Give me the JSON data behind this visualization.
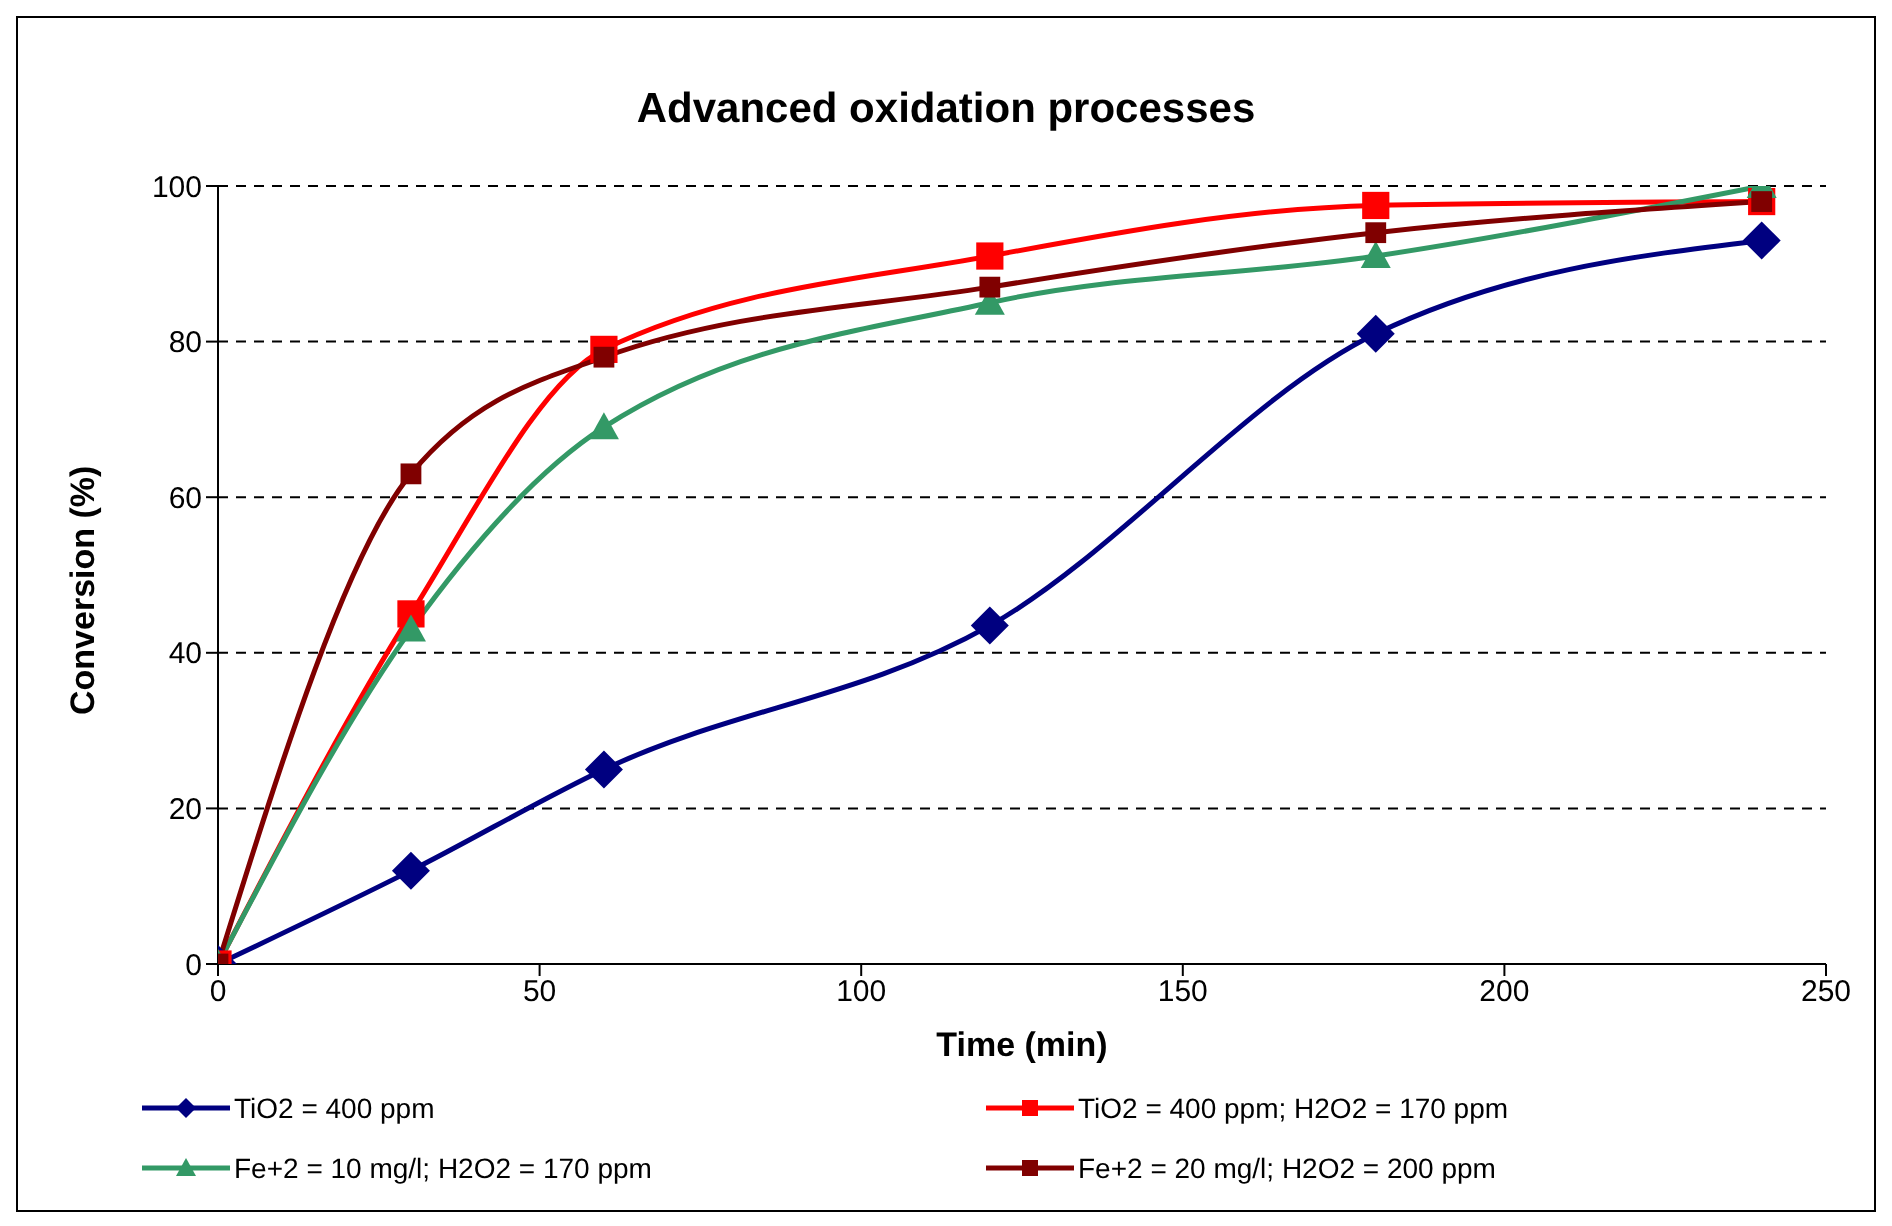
{
  "chart_data": {
    "type": "line",
    "title": "Advanced oxidation processes",
    "xlabel": "Time (min)",
    "ylabel": "Conversion (%)",
    "x": [
      0,
      30,
      60,
      120,
      180,
      240
    ],
    "series": [
      {
        "name": "TiO2 = 400 ppm",
        "color": "#000080",
        "marker": "diamond",
        "values": [
          0,
          12,
          25,
          43.5,
          81,
          93
        ]
      },
      {
        "name": "TiO2 = 400 ppm; H2O2 = 170 ppm",
        "color": "#ff0000",
        "marker": "square",
        "values": [
          0,
          45,
          79,
          91,
          97.5,
          98
        ]
      },
      {
        "name": "Fe+2 = 10 mg/l; H2O2 = 170 ppm",
        "color": "#339966",
        "marker": "triangle",
        "values": [
          0,
          43,
          69,
          85,
          91,
          100
        ]
      },
      {
        "name": "Fe+2 = 20 mg/l; H2O2 = 200 ppm",
        "color": "#800000",
        "marker": "square",
        "values": [
          0,
          63,
          78,
          87,
          94,
          98
        ]
      }
    ],
    "xlim": [
      0,
      250
    ],
    "xticks": [
      0,
      50,
      100,
      150,
      200,
      250
    ],
    "ylim": [
      0,
      100
    ],
    "yticks": [
      0,
      20,
      40,
      60,
      80,
      100
    ],
    "grid": "y",
    "legend": "bottom",
    "line_style": "solid"
  }
}
